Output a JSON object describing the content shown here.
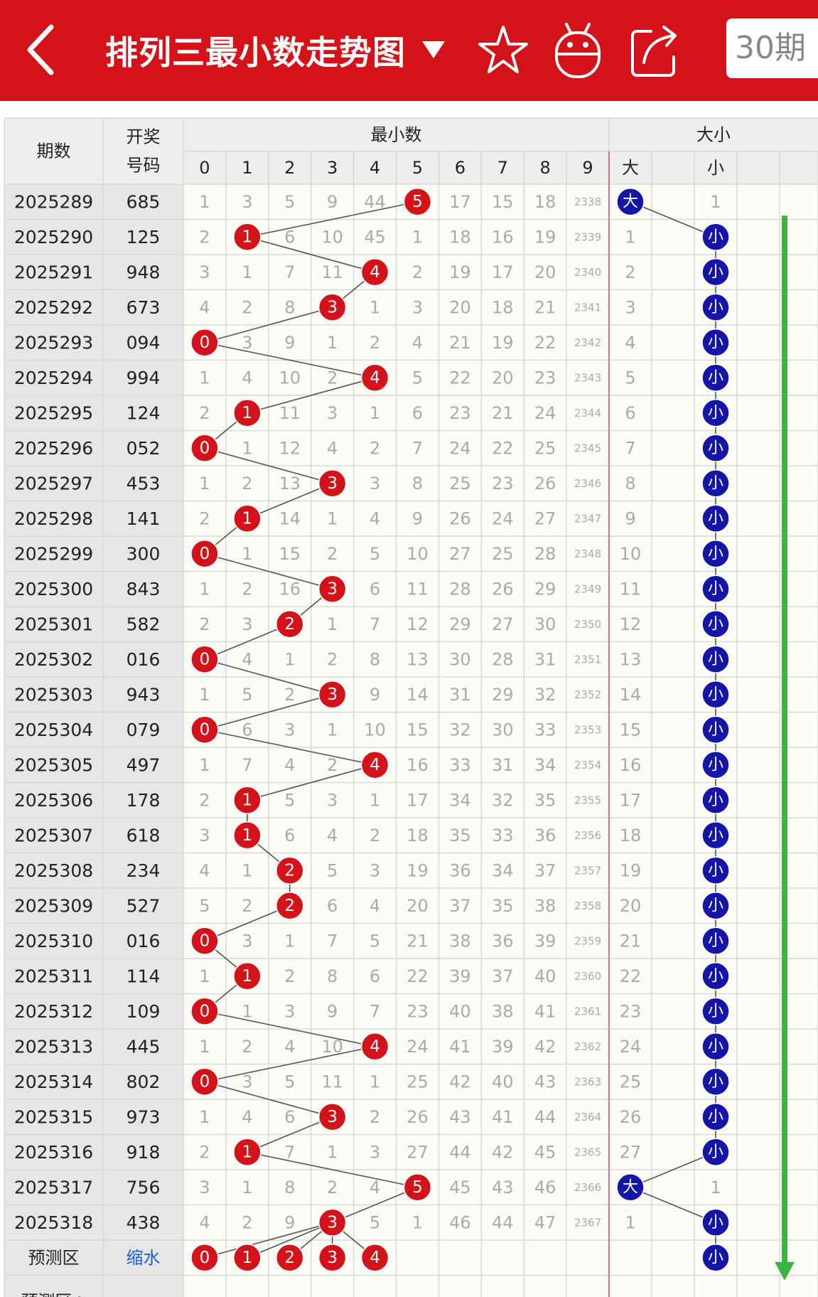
{
  "header": {
    "title": "排列三最小数走势图",
    "period_label": "30期",
    "bg_color": "#d4121a"
  },
  "table": {
    "col_period": "期数",
    "col_number_line1": "开奖",
    "col_number_line2": "号码",
    "group_min": "最小数",
    "group_size": "大小",
    "digits": [
      "0",
      "1",
      "2",
      "3",
      "4",
      "5",
      "6",
      "7",
      "8",
      "9"
    ],
    "size_cols": [
      "大",
      "小"
    ],
    "big_label": "大",
    "small_label": "小",
    "rows": [
      {
        "period": "2025289",
        "number": "685",
        "minv": 5,
        "cells": [
          "1",
          "3",
          "5",
          "9",
          "44",
          "5",
          "17",
          "15",
          "18",
          "2338"
        ],
        "big": true,
        "big_cell": "大",
        "small_cell": "1"
      },
      {
        "period": "2025290",
        "number": "125",
        "minv": 1,
        "cells": [
          "2",
          "1",
          "6",
          "10",
          "45",
          "1",
          "18",
          "16",
          "19",
          "2339"
        ],
        "big": false,
        "big_cell": "1",
        "small_cell": "小"
      },
      {
        "period": "2025291",
        "number": "948",
        "minv": 4,
        "cells": [
          "3",
          "1",
          "7",
          "11",
          "4",
          "2",
          "19",
          "17",
          "20",
          "2340"
        ],
        "big": false,
        "big_cell": "2",
        "small_cell": "小"
      },
      {
        "period": "2025292",
        "number": "673",
        "minv": 3,
        "cells": [
          "4",
          "2",
          "8",
          "3",
          "1",
          "3",
          "20",
          "18",
          "21",
          "2341"
        ],
        "big": false,
        "big_cell": "3",
        "small_cell": "小"
      },
      {
        "period": "2025293",
        "number": "094",
        "minv": 0,
        "cells": [
          "0",
          "3",
          "9",
          "1",
          "2",
          "4",
          "21",
          "19",
          "22",
          "2342"
        ],
        "big": false,
        "big_cell": "4",
        "small_cell": "小"
      },
      {
        "period": "2025294",
        "number": "994",
        "minv": 4,
        "cells": [
          "1",
          "4",
          "10",
          "2",
          "4",
          "5",
          "22",
          "20",
          "23",
          "2343"
        ],
        "big": false,
        "big_cell": "5",
        "small_cell": "小"
      },
      {
        "period": "2025295",
        "number": "124",
        "minv": 1,
        "cells": [
          "2",
          "1",
          "11",
          "3",
          "1",
          "6",
          "23",
          "21",
          "24",
          "2344"
        ],
        "big": false,
        "big_cell": "6",
        "small_cell": "小"
      },
      {
        "period": "2025296",
        "number": "052",
        "minv": 0,
        "cells": [
          "0",
          "1",
          "12",
          "4",
          "2",
          "7",
          "24",
          "22",
          "25",
          "2345"
        ],
        "big": false,
        "big_cell": "7",
        "small_cell": "小"
      },
      {
        "period": "2025297",
        "number": "453",
        "minv": 3,
        "cells": [
          "1",
          "2",
          "13",
          "3",
          "3",
          "8",
          "25",
          "23",
          "26",
          "2346"
        ],
        "big": false,
        "big_cell": "8",
        "small_cell": "小"
      },
      {
        "period": "2025298",
        "number": "141",
        "minv": 1,
        "cells": [
          "2",
          "1",
          "14",
          "1",
          "4",
          "9",
          "26",
          "24",
          "27",
          "2347"
        ],
        "big": false,
        "big_cell": "9",
        "small_cell": "小"
      },
      {
        "period": "2025299",
        "number": "300",
        "minv": 0,
        "cells": [
          "0",
          "1",
          "15",
          "2",
          "5",
          "10",
          "27",
          "25",
          "28",
          "2348"
        ],
        "big": false,
        "big_cell": "10",
        "small_cell": "小"
      },
      {
        "period": "2025300",
        "number": "843",
        "minv": 3,
        "cells": [
          "1",
          "2",
          "16",
          "3",
          "6",
          "11",
          "28",
          "26",
          "29",
          "2349"
        ],
        "big": false,
        "big_cell": "11",
        "small_cell": "小"
      },
      {
        "period": "2025301",
        "number": "582",
        "minv": 2,
        "cells": [
          "2",
          "3",
          "2",
          "1",
          "7",
          "12",
          "29",
          "27",
          "30",
          "2350"
        ],
        "big": false,
        "big_cell": "12",
        "small_cell": "小"
      },
      {
        "period": "2025302",
        "number": "016",
        "minv": 0,
        "cells": [
          "0",
          "4",
          "1",
          "2",
          "8",
          "13",
          "30",
          "28",
          "31",
          "2351"
        ],
        "big": false,
        "big_cell": "13",
        "small_cell": "小"
      },
      {
        "period": "2025303",
        "number": "943",
        "minv": 3,
        "cells": [
          "1",
          "5",
          "2",
          "3",
          "9",
          "14",
          "31",
          "29",
          "32",
          "2352"
        ],
        "big": false,
        "big_cell": "14",
        "small_cell": "小"
      },
      {
        "period": "2025304",
        "number": "079",
        "minv": 0,
        "cells": [
          "0",
          "6",
          "3",
          "1",
          "10",
          "15",
          "32",
          "30",
          "33",
          "2353"
        ],
        "big": false,
        "big_cell": "15",
        "small_cell": "小"
      },
      {
        "period": "2025305",
        "number": "497",
        "minv": 4,
        "cells": [
          "1",
          "7",
          "4",
          "2",
          "4",
          "16",
          "33",
          "31",
          "34",
          "2354"
        ],
        "big": false,
        "big_cell": "16",
        "small_cell": "小"
      },
      {
        "period": "2025306",
        "number": "178",
        "minv": 1,
        "cells": [
          "2",
          "1",
          "5",
          "3",
          "1",
          "17",
          "34",
          "32",
          "35",
          "2355"
        ],
        "big": false,
        "big_cell": "17",
        "small_cell": "小"
      },
      {
        "period": "2025307",
        "number": "618",
        "minv": 1,
        "cells": [
          "3",
          "1",
          "6",
          "4",
          "2",
          "18",
          "35",
          "33",
          "36",
          "2356"
        ],
        "big": false,
        "big_cell": "18",
        "small_cell": "小"
      },
      {
        "period": "2025308",
        "number": "234",
        "minv": 2,
        "cells": [
          "4",
          "1",
          "2",
          "5",
          "3",
          "19",
          "36",
          "34",
          "37",
          "2357"
        ],
        "big": false,
        "big_cell": "19",
        "small_cell": "小"
      },
      {
        "period": "2025309",
        "number": "527",
        "minv": 2,
        "cells": [
          "5",
          "2",
          "2",
          "6",
          "4",
          "20",
          "37",
          "35",
          "38",
          "2358"
        ],
        "big": false,
        "big_cell": "20",
        "small_cell": "小"
      },
      {
        "period": "2025310",
        "number": "016",
        "minv": 0,
        "cells": [
          "0",
          "3",
          "1",
          "7",
          "5",
          "21",
          "38",
          "36",
          "39",
          "2359"
        ],
        "big": false,
        "big_cell": "21",
        "small_cell": "小"
      },
      {
        "period": "2025311",
        "number": "114",
        "minv": 1,
        "cells": [
          "1",
          "1",
          "2",
          "8",
          "6",
          "22",
          "39",
          "37",
          "40",
          "2360"
        ],
        "big": false,
        "big_cell": "22",
        "small_cell": "小"
      },
      {
        "period": "2025312",
        "number": "109",
        "minv": 0,
        "cells": [
          "0",
          "1",
          "3",
          "9",
          "7",
          "23",
          "40",
          "38",
          "41",
          "2361"
        ],
        "big": false,
        "big_cell": "23",
        "small_cell": "小"
      },
      {
        "period": "2025313",
        "number": "445",
        "minv": 4,
        "cells": [
          "1",
          "2",
          "4",
          "10",
          "4",
          "24",
          "41",
          "39",
          "42",
          "2362"
        ],
        "big": false,
        "big_cell": "24",
        "small_cell": "小"
      },
      {
        "period": "2025314",
        "number": "802",
        "minv": 0,
        "cells": [
          "0",
          "3",
          "5",
          "11",
          "1",
          "25",
          "42",
          "40",
          "43",
          "2363"
        ],
        "big": false,
        "big_cell": "25",
        "small_cell": "小"
      },
      {
        "period": "2025315",
        "number": "973",
        "minv": 3,
        "cells": [
          "1",
          "4",
          "6",
          "3",
          "2",
          "26",
          "43",
          "41",
          "44",
          "2364"
        ],
        "big": false,
        "big_cell": "26",
        "small_cell": "小"
      },
      {
        "period": "2025316",
        "number": "918",
        "minv": 1,
        "cells": [
          "2",
          "1",
          "7",
          "1",
          "3",
          "27",
          "44",
          "42",
          "45",
          "2365"
        ],
        "big": false,
        "big_cell": "27",
        "small_cell": "小"
      },
      {
        "period": "2025317",
        "number": "756",
        "minv": 5,
        "cells": [
          "3",
          "1",
          "8",
          "2",
          "4",
          "5",
          "45",
          "43",
          "46",
          "2366"
        ],
        "big": true,
        "big_cell": "大",
        "small_cell": "1"
      },
      {
        "period": "2025318",
        "number": "438",
        "minv": 3,
        "cells": [
          "4",
          "2",
          "9",
          "3",
          "5",
          "1",
          "46",
          "44",
          "47",
          "2367"
        ],
        "big": false,
        "big_cell": "1",
        "small_cell": "小"
      }
    ],
    "predict": {
      "label": "预测区",
      "number": "缩水",
      "balls": [
        "0",
        "1",
        "2",
        "3",
        "4"
      ],
      "small_cell": "小"
    },
    "predict_plus_label": "预测区+"
  },
  "colors": {
    "red_ball": "#d4121a",
    "blue_ball": "#1515a8",
    "green_arrow": "#3cb540",
    "miss_text": "#aaaaaa",
    "header_cell_bg": "#eeeeee",
    "col_bg": "#e6e6e6",
    "cell_bg": "#fcfcf7"
  },
  "icons": [
    "back-icon",
    "dropdown-triangle-icon",
    "star-icon",
    "robot-icon",
    "share-icon"
  ]
}
